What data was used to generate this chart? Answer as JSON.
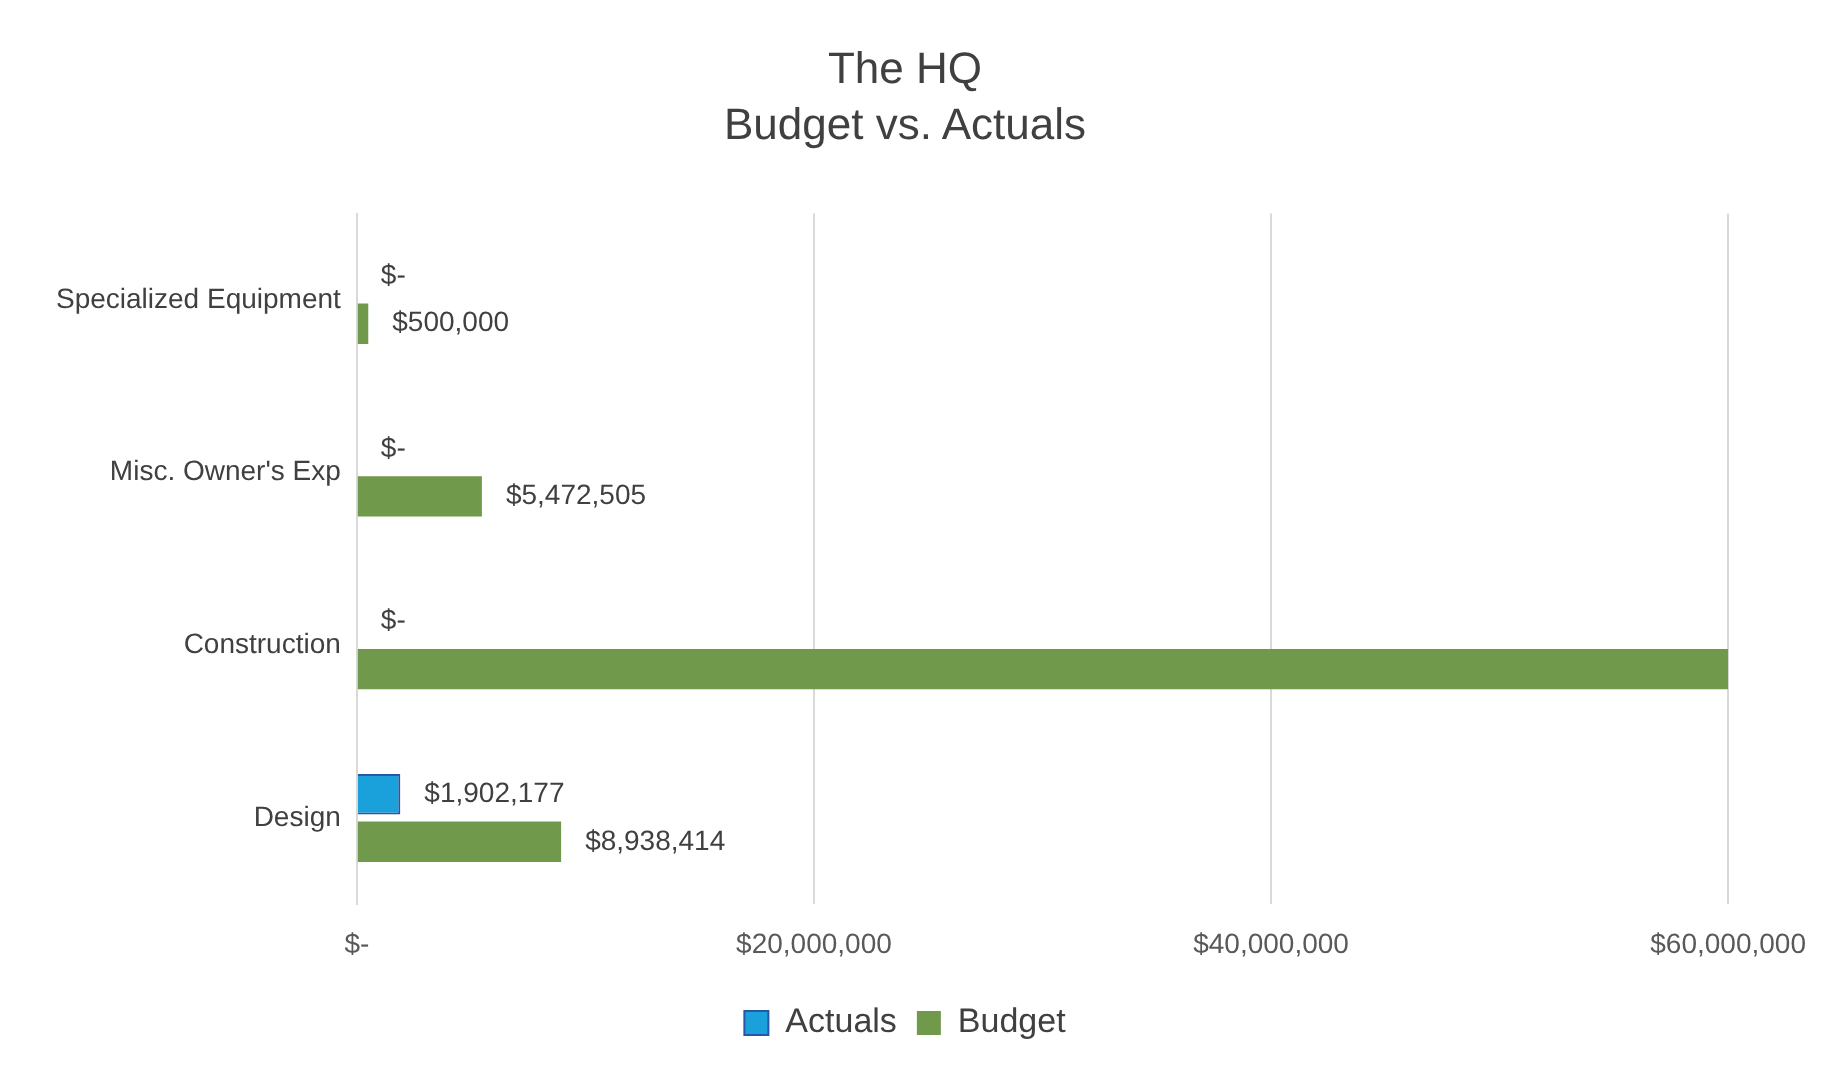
{
  "chart_data": {
    "type": "bar",
    "orientation": "horizontal",
    "title": "The HQ",
    "subtitle": "Budget vs. Actuals",
    "categories": [
      "Specialized Equipment",
      "Misc. Owner's Exp",
      "Construction",
      "Design"
    ],
    "series": [
      {
        "name": "Actuals",
        "color": "#1aa0db",
        "values": [
          0,
          0,
          0,
          1902177
        ],
        "value_labels": [
          "$-",
          "$-",
          "$-",
          "$1,902,177"
        ]
      },
      {
        "name": "Budget",
        "color": "#70994b",
        "values": [
          500000,
          5472505,
          60000000,
          8938414
        ],
        "value_labels": [
          "$500,000",
          "$5,472,505",
          null,
          "$8,938,414"
        ]
      }
    ],
    "xlim": [
      0,
      60000000
    ],
    "xticks": [
      {
        "value": 0,
        "label": "$-"
      },
      {
        "value": 20000000,
        "label": "$20,000,000"
      },
      {
        "value": 40000000,
        "label": "$40,000,000"
      },
      {
        "value": 60000000,
        "label": "$60,000,000"
      }
    ],
    "grid": "x",
    "legend": "bottom"
  }
}
